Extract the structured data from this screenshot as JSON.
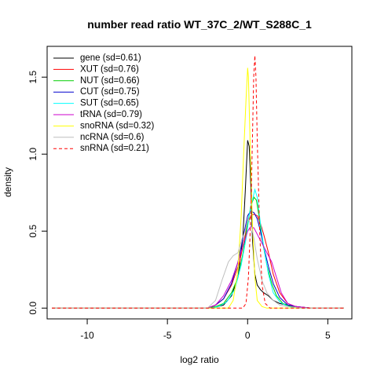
{
  "chart_data": {
    "type": "line",
    "title": "number read ratio WT_37C_2/WT_S288C_1",
    "xlabel": "log2 ratio",
    "ylabel": "density",
    "xlim": [
      -12.5,
      6.5
    ],
    "ylim": [
      -0.07,
      1.7
    ],
    "xticks": [
      -10,
      -5,
      0,
      5
    ],
    "yticks": [
      0.0,
      0.5,
      1.0,
      1.5
    ],
    "xtick_labels": [
      "-10",
      "-5",
      "0",
      "5"
    ],
    "ytick_labels": [
      "0.0",
      "0.5",
      "1.0",
      "1.5"
    ],
    "grid": false,
    "legend_position": "top-left",
    "series": [
      {
        "name": "gene (sd=0.61)",
        "color": "#000000",
        "dash": "solid",
        "x": [
          -12.2,
          -2.2,
          -1.5,
          -1.0,
          -0.6,
          -0.3,
          -0.15,
          0.0,
          0.1,
          0.2,
          0.3,
          0.45,
          0.6,
          0.8,
          1.0,
          1.3,
          1.6,
          2.0,
          2.5,
          3.0,
          4.0,
          6.0
        ],
        "y": [
          0,
          0,
          0.02,
          0.08,
          0.2,
          0.45,
          0.75,
          1.09,
          1.05,
          0.8,
          0.45,
          0.22,
          0.15,
          0.12,
          0.1,
          0.08,
          0.05,
          0.03,
          0.02,
          0.01,
          0,
          0
        ]
      },
      {
        "name": "XUT (sd=0.76)",
        "color": "#ff0000",
        "dash": "solid",
        "x": [
          -12.2,
          -2.5,
          -2.0,
          -1.5,
          -1.0,
          -0.5,
          -0.2,
          0.0,
          0.2,
          0.4,
          0.6,
          0.8,
          1.0,
          1.3,
          1.6,
          2.0,
          2.5,
          3.0,
          4.0,
          6.0
        ],
        "y": [
          0,
          0,
          0.02,
          0.06,
          0.15,
          0.3,
          0.45,
          0.55,
          0.6,
          0.61,
          0.6,
          0.55,
          0.48,
          0.36,
          0.22,
          0.1,
          0.03,
          0.01,
          0,
          0
        ]
      },
      {
        "name": "NUT (sd=0.66)",
        "color": "#00cd00",
        "dash": "solid",
        "x": [
          -12.2,
          -2.5,
          -2.0,
          -1.5,
          -1.0,
          -0.6,
          -0.3,
          0.0,
          0.2,
          0.4,
          0.55,
          0.7,
          0.9,
          1.2,
          1.5,
          1.8,
          2.2,
          2.7,
          3.5,
          6.0
        ],
        "y": [
          0,
          0,
          0.01,
          0.03,
          0.1,
          0.2,
          0.35,
          0.55,
          0.66,
          0.72,
          0.7,
          0.6,
          0.45,
          0.28,
          0.16,
          0.08,
          0.03,
          0.01,
          0,
          0
        ]
      },
      {
        "name": "CUT (sd=0.75)",
        "color": "#0000cd",
        "dash": "solid",
        "x": [
          -12.2,
          -2.5,
          -2.0,
          -1.5,
          -1.0,
          -0.6,
          -0.3,
          0.0,
          0.2,
          0.4,
          0.6,
          0.8,
          1.0,
          1.3,
          1.6,
          2.0,
          2.5,
          3.0,
          4.0,
          6.0
        ],
        "y": [
          0,
          0,
          0.02,
          0.06,
          0.16,
          0.3,
          0.45,
          0.6,
          0.63,
          0.62,
          0.58,
          0.5,
          0.4,
          0.27,
          0.16,
          0.07,
          0.02,
          0.01,
          0,
          0
        ]
      },
      {
        "name": "SUT (sd=0.65)",
        "color": "#00ffff",
        "dash": "solid",
        "x": [
          -12.2,
          -2.3,
          -1.8,
          -1.3,
          -0.8,
          -0.4,
          -0.1,
          0.1,
          0.3,
          0.45,
          0.6,
          0.8,
          1.0,
          1.3,
          1.6,
          2.0,
          2.5,
          3.0,
          4.0,
          6.0
        ],
        "y": [
          0,
          0,
          0.01,
          0.04,
          0.12,
          0.28,
          0.45,
          0.6,
          0.7,
          0.77,
          0.72,
          0.55,
          0.4,
          0.22,
          0.1,
          0.04,
          0.01,
          0,
          0,
          0
        ]
      },
      {
        "name": "tRNA (sd=0.79)",
        "color": "#cd00cd",
        "dash": "solid",
        "x": [
          -12.2,
          -2.5,
          -2.0,
          -1.5,
          -1.0,
          -0.6,
          -0.3,
          0.0,
          0.2,
          0.4,
          0.6,
          0.9,
          1.2,
          1.5,
          1.8,
          2.1,
          2.5,
          3.0,
          4.0,
          6.0
        ],
        "y": [
          0,
          0,
          0.02,
          0.08,
          0.18,
          0.3,
          0.4,
          0.5,
          0.53,
          0.52,
          0.48,
          0.42,
          0.36,
          0.3,
          0.2,
          0.1,
          0.03,
          0.01,
          0,
          0
        ]
      },
      {
        "name": "snoRNA (sd=0.32)",
        "color": "#ffff00",
        "dash": "solid",
        "x": [
          -12.2,
          -1.2,
          -0.9,
          -0.6,
          -0.4,
          -0.25,
          -0.1,
          0.0,
          0.05,
          0.15,
          0.3,
          0.45,
          0.6,
          0.9,
          1.2,
          6.0
        ],
        "y": [
          0,
          0,
          0.05,
          0.25,
          0.6,
          1.0,
          1.35,
          1.56,
          1.5,
          1.1,
          0.55,
          0.2,
          0.05,
          0.01,
          0,
          0
        ]
      },
      {
        "name": "ncRNA (sd=0.6)",
        "color": "#bebebe",
        "dash": "solid",
        "x": [
          -12.2,
          -2.5,
          -2.0,
          -1.6,
          -1.2,
          -0.9,
          -0.6,
          -0.35,
          -0.15,
          0.0,
          0.2,
          0.4,
          0.6,
          0.9,
          1.2,
          1.6,
          2.0,
          2.5,
          3.5,
          6.0
        ],
        "y": [
          0,
          0,
          0.05,
          0.18,
          0.3,
          0.34,
          0.36,
          0.45,
          0.5,
          0.58,
          0.55,
          0.45,
          0.32,
          0.18,
          0.1,
          0.05,
          0.02,
          0.01,
          0,
          0
        ]
      },
      {
        "name": "snRNA (sd=0.21)",
        "color": "#ff0000",
        "dash": "dashed",
        "x": [
          -12.2,
          -0.3,
          -0.1,
          0.05,
          0.2,
          0.3,
          0.38,
          0.45,
          0.52,
          0.6,
          0.75,
          0.9,
          1.1,
          1.4,
          6.0
        ],
        "y": [
          0,
          0,
          0.03,
          0.2,
          0.6,
          1.1,
          1.5,
          1.64,
          1.5,
          1.1,
          0.5,
          0.15,
          0.03,
          0,
          0
        ]
      }
    ]
  }
}
